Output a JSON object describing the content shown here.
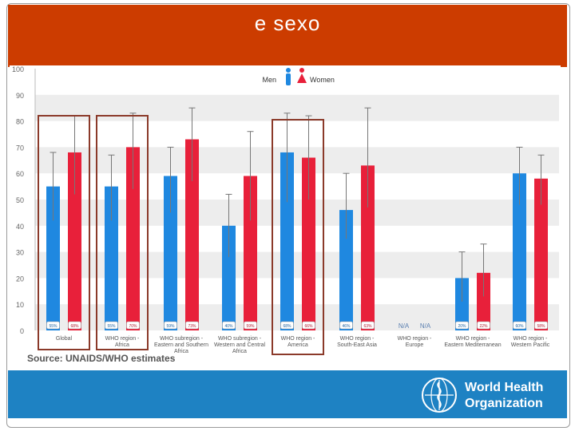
{
  "slide": {
    "title": "e sexo",
    "source": "Source: UNAIDS/WHO estimates",
    "logo_line1": "World Health",
    "logo_line2": "Organization"
  },
  "colors": {
    "title_band": "#cc3c00",
    "men": "#1f88e0",
    "women": "#e8203a",
    "footer_band": "#1e82c3",
    "highlight_box": "#8b3a2a"
  },
  "chart_data": {
    "type": "bar",
    "title": "",
    "legend": [
      "Men",
      "Women"
    ],
    "ylim": [
      0,
      100
    ],
    "yticks": [
      0,
      10,
      20,
      30,
      40,
      50,
      60,
      70,
      80,
      90,
      100
    ],
    "categories": [
      [
        "Global"
      ],
      [
        "WHO region -",
        "Africa"
      ],
      [
        "WHO subregion -",
        "Eastern and Southern",
        "Africa"
      ],
      [
        "WHO subregion -",
        "Western and Central",
        "Africa"
      ],
      [
        "WHO region -",
        "America"
      ],
      [
        "WHO region -",
        "South-East Asia"
      ],
      [
        "WHO region -",
        "Europe"
      ],
      [
        "WHO region -",
        "Eastern Mediterranean"
      ],
      [
        "WHO region -",
        "Western Pacific"
      ]
    ],
    "series": [
      {
        "name": "Men",
        "values": [
          55,
          55,
          59,
          40,
          68,
          46,
          null,
          20,
          60
        ],
        "error_low": [
          42,
          42,
          45,
          28,
          49,
          35,
          null,
          11,
          48
        ],
        "error_high": [
          68,
          67,
          70,
          52,
          83,
          60,
          null,
          30,
          70
        ],
        "labels": [
          "55%",
          "55%",
          "59%",
          "40%",
          "68%",
          "46%",
          "N/A",
          "20%",
          "60%"
        ]
      },
      {
        "name": "Women",
        "values": [
          68,
          70,
          73,
          59,
          66,
          63,
          null,
          22,
          58
        ],
        "error_low": [
          52,
          54,
          57,
          42,
          50,
          47,
          null,
          13,
          48
        ],
        "error_high": [
          82,
          83,
          85,
          76,
          82,
          85,
          null,
          33,
          67
        ],
        "labels": [
          "68%",
          "70%",
          "73%",
          "59%",
          "66%",
          "63%",
          "N/A",
          "22%",
          "58%"
        ]
      }
    ],
    "highlighted_groups": [
      0,
      1,
      4
    ]
  }
}
